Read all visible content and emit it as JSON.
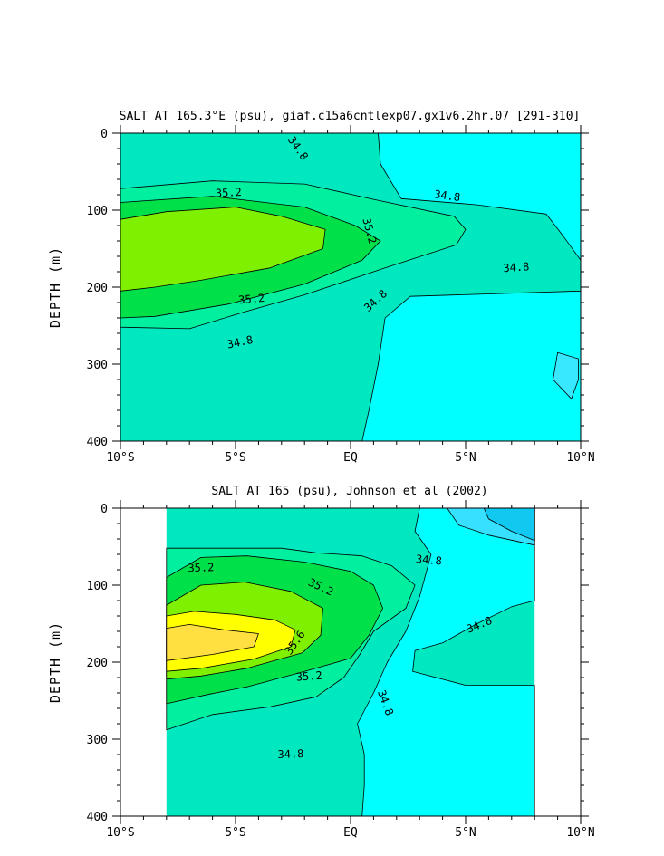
{
  "chart_data": [
    {
      "type": "contour",
      "title": "SALT AT 165.3°E (psu), giaf.c15a6cntlexp07.gx1v6.2hr.07 [291-310]",
      "ylabel": "DEPTH (m)",
      "xlabel": "",
      "x_ticks": [
        {
          "value": -10,
          "label": "10°S"
        },
        {
          "value": -5,
          "label": "5°S"
        },
        {
          "value": 0,
          "label": "EQ"
        },
        {
          "value": 5,
          "label": "5°N"
        },
        {
          "value": 10,
          "label": "10°N"
        }
      ],
      "y_ticks": [
        {
          "value": 0,
          "label": "0"
        },
        {
          "value": 100,
          "label": "100"
        },
        {
          "value": 200,
          "label": "200"
        },
        {
          "value": 300,
          "label": "300"
        },
        {
          "value": 400,
          "label": "400"
        }
      ],
      "xlim": [
        -10,
        10
      ],
      "ylim": [
        0,
        400
      ],
      "y_inverted": true,
      "contour_labels": [
        {
          "text": "34.8",
          "x": -2.3,
          "y": 20,
          "angle": 55
        },
        {
          "text": "35.2",
          "x": -5.3,
          "y": 78,
          "angle": -3
        },
        {
          "text": "34.8",
          "x": 4.2,
          "y": 82,
          "angle": 8
        },
        {
          "text": "35.2",
          "x": 0.8,
          "y": 127,
          "angle": 75
        },
        {
          "text": "34.8",
          "x": 7.2,
          "y": 175,
          "angle": -4
        },
        {
          "text": "35.2",
          "x": -4.3,
          "y": 216,
          "angle": -5
        },
        {
          "text": "34.8",
          "x": 1.1,
          "y": 218,
          "angle": -42
        },
        {
          "text": "34.8",
          "x": -4.8,
          "y": 272,
          "angle": -12
        }
      ],
      "regions": [
        {
          "salinity_band": "34.4-34.6",
          "color": "#00ffff",
          "points": [
            [
              1.2,
              0
            ],
            [
              10,
              0
            ],
            [
              10,
              400
            ],
            [
              0.5,
              400
            ],
            [
              0.8,
              360
            ],
            [
              1.2,
              300
            ],
            [
              1.5,
              240
            ],
            [
              2.6,
              212
            ],
            [
              10,
              205
            ],
            [
              10,
              165
            ],
            [
              9.2,
              132
            ],
            [
              8.5,
              105
            ],
            [
              5.5,
              93
            ],
            [
              2.2,
              85
            ],
            [
              1.3,
              40
            ]
          ]
        },
        {
          "salinity_band": "34.2-34.4",
          "color": "#38e8ff",
          "points": [
            [
              9.9,
              293
            ],
            [
              9.0,
              285
            ],
            [
              8.8,
              320
            ],
            [
              9.6,
              345
            ],
            [
              9.9,
              320
            ]
          ]
        },
        {
          "salinity_band": "34.8-35.0",
          "color": "#00f0a0",
          "points": [
            [
              -10,
              72
            ],
            [
              -6,
              62
            ],
            [
              -2,
              66
            ],
            [
              1,
              86
            ],
            [
              4.5,
              108
            ],
            [
              5,
              125
            ],
            [
              4.6,
              145
            ],
            [
              1.5,
              175
            ],
            [
              -2,
              210
            ],
            [
              -4.6,
              232
            ],
            [
              -7,
              254
            ],
            [
              -10,
              252
            ]
          ]
        },
        {
          "salinity_band": "35.0-35.2",
          "color": "#00e048",
          "points": [
            [
              -10,
              90
            ],
            [
              -6,
              82
            ],
            [
              -2,
              96
            ],
            [
              0.2,
              120
            ],
            [
              1.3,
              140
            ],
            [
              0.5,
              165
            ],
            [
              -2,
              196
            ],
            [
              -5.3,
              222
            ],
            [
              -8.5,
              238
            ],
            [
              -10,
              240
            ]
          ]
        },
        {
          "salinity_band": "35.2-35.4",
          "color": "#7ff000",
          "points": [
            [
              -10,
              112
            ],
            [
              -8,
              102
            ],
            [
              -5,
              96
            ],
            [
              -3,
              108
            ],
            [
              -1.1,
              125
            ],
            [
              -1.2,
              150
            ],
            [
              -3.5,
              175
            ],
            [
              -6.5,
              191
            ],
            [
              -8.5,
              200
            ],
            [
              -10,
              205
            ]
          ]
        }
      ]
    },
    {
      "type": "contour",
      "title": "SALT AT 165 (psu), Johnson et al (2002)",
      "ylabel": "DEPTH (m)",
      "xlabel": "",
      "x_ticks": [
        {
          "value": -10,
          "label": "10°S"
        },
        {
          "value": -5,
          "label": "5°S"
        },
        {
          "value": 0,
          "label": "EQ"
        },
        {
          "value": 5,
          "label": "5°N"
        },
        {
          "value": 10,
          "label": "10°N"
        }
      ],
      "y_ticks": [
        {
          "value": 0,
          "label": "0"
        },
        {
          "value": 100,
          "label": "100"
        },
        {
          "value": 200,
          "label": "200"
        },
        {
          "value": 300,
          "label": "300"
        },
        {
          "value": 400,
          "label": "400"
        }
      ],
      "xlim": [
        -10,
        10
      ],
      "ylim": [
        0,
        400
      ],
      "y_inverted": true,
      "data_xlim": [
        -8,
        8
      ],
      "contour_labels": [
        {
          "text": "35.2",
          "x": -6.5,
          "y": 78,
          "angle": -2
        },
        {
          "text": "34.8",
          "x": 3.4,
          "y": 68,
          "angle": 5
        },
        {
          "text": "35.2",
          "x": -1.3,
          "y": 103,
          "angle": 25
        },
        {
          "text": "34.8",
          "x": 5.6,
          "y": 152,
          "angle": -22
        },
        {
          "text": "35.6",
          "x": -2.4,
          "y": 175,
          "angle": -55
        },
        {
          "text": "35.2",
          "x": -1.8,
          "y": 219,
          "angle": -4
        },
        {
          "text": "34.8",
          "x": 1.5,
          "y": 253,
          "angle": 70
        },
        {
          "text": "34.8",
          "x": -2.6,
          "y": 320,
          "angle": -2
        }
      ],
      "regions": [
        {
          "salinity_band": "34.4-34.6",
          "color": "#00ffff",
          "points": [
            [
              3,
              0
            ],
            [
              8,
              0
            ],
            [
              8,
              120
            ],
            [
              7,
              128
            ],
            [
              5.5,
              150
            ],
            [
              4,
              175
            ],
            [
              2.8,
              185
            ],
            [
              2.7,
              212
            ],
            [
              5,
              230
            ],
            [
              8,
              230
            ],
            [
              8,
              400
            ],
            [
              0.5,
              400
            ],
            [
              0.6,
              360
            ],
            [
              0.6,
              320
            ],
            [
              0.3,
              280
            ],
            [
              1.0,
              240
            ],
            [
              1.6,
              200
            ],
            [
              2.4,
              160
            ],
            [
              3.0,
              115
            ],
            [
              3.5,
              60
            ],
            [
              2.8,
              30
            ]
          ]
        },
        {
          "salinity_band": "34.2-34.4",
          "color": "#38e0ff",
          "points": [
            [
              4.2,
              0
            ],
            [
              8,
              0
            ],
            [
              8,
              48
            ],
            [
              6,
              35
            ],
            [
              4.7,
              22
            ]
          ]
        },
        {
          "salinity_band": "34.0-34.2",
          "color": "#10c8f0",
          "points": [
            [
              5.8,
              0
            ],
            [
              8,
              0
            ],
            [
              8,
              42
            ],
            [
              7,
              30
            ],
            [
              6,
              14
            ]
          ]
        },
        {
          "salinity_band": "34.8-35.0",
          "color": "#00f0a0",
          "points": [
            [
              -8,
              52
            ],
            [
              -6,
              52
            ],
            [
              -3,
              52
            ],
            [
              -1.5,
              58
            ],
            [
              0.5,
              62
            ],
            [
              1.8,
              75
            ],
            [
              2.8,
              100
            ],
            [
              2.4,
              130
            ],
            [
              1.0,
              160
            ],
            [
              0.4,
              190
            ],
            [
              -0.3,
              220
            ],
            [
              -1.5,
              245
            ],
            [
              -3.5,
              258
            ],
            [
              -6,
              268
            ],
            [
              -8,
              288
            ]
          ]
        },
        {
          "salinity_band": "35.0-35.2",
          "color": "#00e048",
          "points": [
            [
              -8,
              90
            ],
            [
              -6.5,
              64
            ],
            [
              -4.5,
              62
            ],
            [
              -2,
              70
            ],
            [
              0,
              82
            ],
            [
              1,
              100
            ],
            [
              1.4,
              130
            ],
            [
              0.8,
              165
            ],
            [
              0,
              195
            ],
            [
              -2,
              212
            ],
            [
              -4.5,
              232
            ],
            [
              -6.2,
              242
            ],
            [
              -8,
              254
            ]
          ]
        },
        {
          "salinity_band": "35.2-35.4",
          "color": "#7ff000",
          "points": [
            [
              -8,
              126
            ],
            [
              -6.5,
              100
            ],
            [
              -4.6,
              96
            ],
            [
              -2.6,
              108
            ],
            [
              -1.2,
              130
            ],
            [
              -1.3,
              165
            ],
            [
              -2.1,
              188
            ],
            [
              -4.5,
              208
            ],
            [
              -6.5,
              218
            ],
            [
              -8,
              222
            ]
          ]
        },
        {
          "salinity_band": "35.4-35.6",
          "color": "#ffff00",
          "points": [
            [
              -8,
              140
            ],
            [
              -6.8,
              134
            ],
            [
              -5,
              138
            ],
            [
              -3.3,
              145
            ],
            [
              -2.4,
              158
            ],
            [
              -2.6,
              180
            ],
            [
              -4.2,
              196
            ],
            [
              -6.5,
              208
            ],
            [
              -8,
              212
            ]
          ]
        },
        {
          "salinity_band": "35.6-35.8",
          "color": "#ffe040",
          "points": [
            [
              -8,
              156
            ],
            [
              -7,
              151
            ],
            [
              -5.5,
              158
            ],
            [
              -4.0,
              163
            ],
            [
              -4.2,
              180
            ],
            [
              -6,
              190
            ],
            [
              -8,
              198
            ]
          ]
        }
      ]
    }
  ]
}
